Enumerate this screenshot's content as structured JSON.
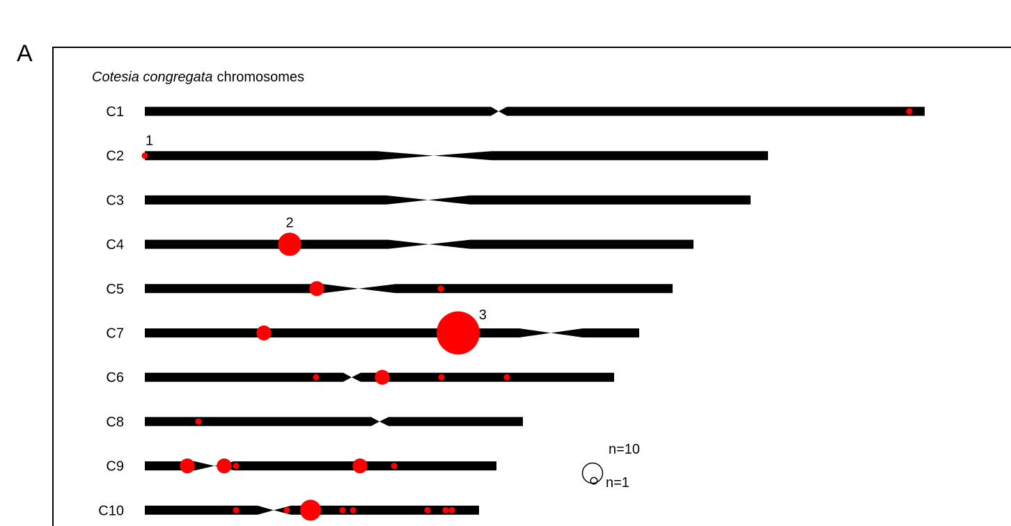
{
  "panel_label": "A",
  "title": {
    "species": "Cotesia congregata",
    "suffix": "chromosomes"
  },
  "colors": {
    "chromosome": "#000000",
    "cluster": "#ff0000",
    "legend_stroke": "#000000"
  },
  "chromosomes": [
    {
      "name": "C1",
      "length": 1120,
      "centromere": {
        "left": 497,
        "center": 508,
        "right": 520
      }
    },
    {
      "name": "C2",
      "length": 895,
      "centromere": {
        "left": 333,
        "center": 415,
        "right": 498
      }
    },
    {
      "name": "C3",
      "length": 870,
      "centromere": {
        "left": 347,
        "center": 407,
        "right": 467
      }
    },
    {
      "name": "C4",
      "length": 788,
      "centromere": {
        "left": 350,
        "center": 408,
        "right": 467
      }
    },
    {
      "name": "C5",
      "length": 758,
      "centromere": {
        "left": 256,
        "center": 307,
        "right": 360
      }
    },
    {
      "name": "C7",
      "length": 710,
      "centromere": {
        "left": 538,
        "center": 583,
        "right": 629
      }
    },
    {
      "name": "C6",
      "length": 674,
      "centromere": {
        "left": 285,
        "center": 297,
        "right": 310
      }
    },
    {
      "name": "C8",
      "length": 543,
      "centromere": {
        "left": 325,
        "center": 337,
        "right": 350
      }
    },
    {
      "name": "C9",
      "length": 505,
      "centromere": {
        "left": 72,
        "center": 100,
        "right": 128
      }
    },
    {
      "name": "C10",
      "length": 480,
      "centromere": {
        "left": 162,
        "center": 185,
        "right": 210
      }
    }
  ],
  "clusters": [
    {
      "chromosome": "C1",
      "position": 1098,
      "n": 1
    },
    {
      "chromosome": "C2",
      "position": 0,
      "n": 1,
      "label": "1"
    },
    {
      "chromosome": "C4",
      "position": 208,
      "n": 5,
      "label": "2"
    },
    {
      "chromosome": "C5",
      "position": 247,
      "n": 2
    },
    {
      "chromosome": "C5",
      "position": 425,
      "n": 1
    },
    {
      "chromosome": "C7",
      "position": 171,
      "n": 2
    },
    {
      "chromosome": "C7",
      "position": 450,
      "n": 20,
      "label": "3"
    },
    {
      "chromosome": "C6",
      "position": 246,
      "n": 1
    },
    {
      "chromosome": "C6",
      "position": 341,
      "n": 2
    },
    {
      "chromosome": "C6",
      "position": 426,
      "n": 1
    },
    {
      "chromosome": "C6",
      "position": 520,
      "n": 1
    },
    {
      "chromosome": "C8",
      "position": 77,
      "n": 1
    },
    {
      "chromosome": "C9",
      "position": 61,
      "n": 2
    },
    {
      "chromosome": "C9",
      "position": 114,
      "n": 2
    },
    {
      "chromosome": "C9",
      "position": 131,
      "n": 1
    },
    {
      "chromosome": "C9",
      "position": 309,
      "n": 2
    },
    {
      "chromosome": "C9",
      "position": 358,
      "n": 1
    },
    {
      "chromosome": "C10",
      "position": 131,
      "n": 1
    },
    {
      "chromosome": "C10",
      "position": 204,
      "n": 1
    },
    {
      "chromosome": "C10",
      "position": 238,
      "n": 4
    },
    {
      "chromosome": "C10",
      "position": 284,
      "n": 1
    },
    {
      "chromosome": "C10",
      "position": 299,
      "n": 1
    },
    {
      "chromosome": "C10",
      "position": 406,
      "n": 1
    },
    {
      "chromosome": "C10",
      "position": 432,
      "n": 1
    },
    {
      "chromosome": "C10",
      "position": 441,
      "n": 1
    }
  ],
  "legend": {
    "large_label": "n=10",
    "small_label": "n=1"
  }
}
